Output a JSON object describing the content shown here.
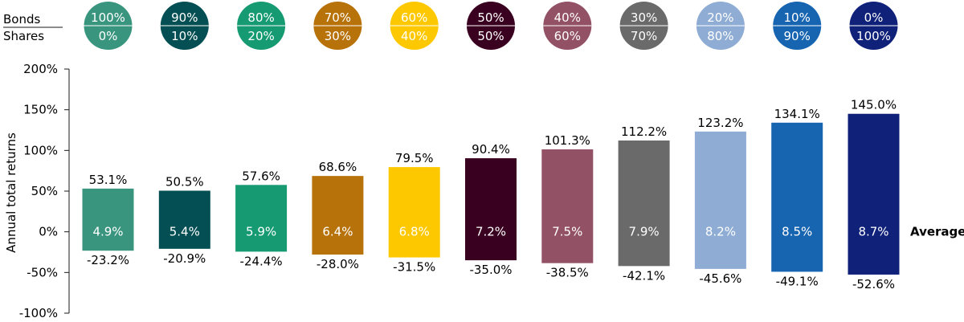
{
  "chart_data": {
    "type": "bar",
    "title": "",
    "ylabel": "Annual total returns",
    "ylim": [
      -100,
      200
    ],
    "yticks": [
      200,
      150,
      100,
      50,
      0,
      -50,
      -100
    ],
    "ytick_labels": [
      "200%",
      "150%",
      "100%",
      "50%",
      "0%",
      "-50%",
      "-100%"
    ],
    "row_labels": {
      "bonds": "Bonds",
      "shares": "Shares"
    },
    "average_label": "Average",
    "categories": [
      {
        "bonds": "100%",
        "shares": "0%",
        "high": 53.1,
        "low": -23.2,
        "average": 4.9,
        "high_label": "53.1%",
        "low_label": "-23.2%",
        "avg_label": "4.9%",
        "color": "#3a957f"
      },
      {
        "bonds": "90%",
        "shares": "10%",
        "high": 50.5,
        "low": -20.9,
        "average": 5.4,
        "high_label": "50.5%",
        "low_label": "-20.9%",
        "avg_label": "5.4%",
        "color": "#034f53"
      },
      {
        "bonds": "80%",
        "shares": "20%",
        "high": 57.6,
        "low": -24.4,
        "average": 5.9,
        "high_label": "57.6%",
        "low_label": "-24.4%",
        "avg_label": "5.9%",
        "color": "#169a72"
      },
      {
        "bonds": "70%",
        "shares": "30%",
        "high": 68.6,
        "low": -28.0,
        "average": 6.4,
        "high_label": "68.6%",
        "low_label": "-28.0%",
        "avg_label": "6.4%",
        "color": "#b8720a"
      },
      {
        "bonds": "60%",
        "shares": "40%",
        "high": 79.5,
        "low": -31.5,
        "average": 6.8,
        "high_label": "79.5%",
        "low_label": "-31.5%",
        "avg_label": "6.8%",
        "color": "#fec800"
      },
      {
        "bonds": "50%",
        "shares": "50%",
        "high": 90.4,
        "low": -35.0,
        "average": 7.2,
        "high_label": "90.4%",
        "low_label": "-35.0%",
        "avg_label": "7.2%",
        "color": "#3a0020"
      },
      {
        "bonds": "40%",
        "shares": "60%",
        "high": 101.3,
        "low": -38.5,
        "average": 7.5,
        "high_label": "101.3%",
        "low_label": "-38.5%",
        "avg_label": "7.5%",
        "color": "#935166"
      },
      {
        "bonds": "30%",
        "shares": "70%",
        "high": 112.2,
        "low": -42.1,
        "average": 7.9,
        "high_label": "112.2%",
        "low_label": "-42.1%",
        "avg_label": "7.9%",
        "color": "#6a6a6a"
      },
      {
        "bonds": "20%",
        "shares": "80%",
        "high": 123.2,
        "low": -45.6,
        "average": 8.2,
        "high_label": "123.2%",
        "low_label": "-45.6%",
        "avg_label": "8.2%",
        "color": "#8eacd4"
      },
      {
        "bonds": "10%",
        "shares": "90%",
        "high": 134.1,
        "low": -49.1,
        "average": 8.5,
        "high_label": "134.1%",
        "low_label": "-49.1%",
        "avg_label": "8.5%",
        "color": "#1764b0"
      },
      {
        "bonds": "0%",
        "shares": "100%",
        "high": 145.0,
        "low": -52.6,
        "average": 8.7,
        "high_label": "145.0%",
        "low_label": "-52.6%",
        "avg_label": "8.7%",
        "color": "#10217a"
      }
    ]
  }
}
